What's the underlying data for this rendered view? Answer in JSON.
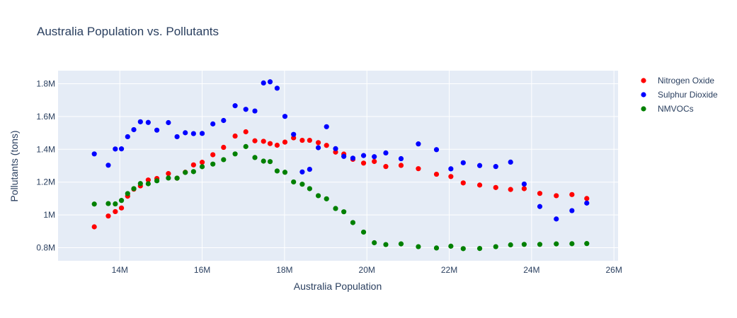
{
  "chart_data": {
    "type": "scatter",
    "title": "Australia Population vs. Pollutants",
    "xlabel": "Australia Population",
    "ylabel": "Pollutants (tons)",
    "xlim": [
      12500000,
      26100000
    ],
    "ylim": [
      720000,
      1880000
    ],
    "x_ticks": [
      {
        "value": 14000000,
        "label": "14M"
      },
      {
        "value": 16000000,
        "label": "16M"
      },
      {
        "value": 18000000,
        "label": "18M"
      },
      {
        "value": 20000000,
        "label": "20M"
      },
      {
        "value": 22000000,
        "label": "22M"
      },
      {
        "value": 24000000,
        "label": "24M"
      },
      {
        "value": 26000000,
        "label": "26M"
      }
    ],
    "y_ticks": [
      {
        "value": 800000,
        "label": "0.8M"
      },
      {
        "value": 1000000,
        "label": "1M"
      },
      {
        "value": 1200000,
        "label": "1.2M"
      },
      {
        "value": 1400000,
        "label": "1.4M"
      },
      {
        "value": 1600000,
        "label": "1.6M"
      },
      {
        "value": 1800000,
        "label": "1.8M"
      }
    ],
    "grid": true,
    "legend_position": "right",
    "x": [
      13380000,
      13720000,
      13890000,
      14040000,
      14190000,
      14340000,
      14500000,
      14690000,
      14900000,
      15180000,
      15390000,
      15590000,
      15790000,
      16000000,
      16260000,
      16520000,
      16800000,
      17060000,
      17280000,
      17490000,
      17650000,
      17820000,
      18010000,
      18220000,
      18430000,
      18610000,
      18820000,
      19020000,
      19240000,
      19440000,
      19660000,
      19920000,
      20180000,
      20460000,
      20830000,
      21250000,
      21690000,
      22040000,
      22340000,
      22740000,
      23130000,
      23490000,
      23820000,
      24200000,
      24600000,
      24980000,
      25340000
    ],
    "series": [
      {
        "name": "Nitrogen Oxide",
        "color": "#ff0000",
        "values": [
          927000,
          993000,
          1020000,
          1042000,
          1114000,
          1157000,
          1177000,
          1213000,
          1222000,
          1252000,
          1224000,
          1260000,
          1305000,
          1321000,
          1367000,
          1412000,
          1481000,
          1507000,
          1452000,
          1449000,
          1435000,
          1425000,
          1444000,
          1470000,
          1455000,
          1455000,
          1441000,
          1424000,
          1383000,
          1371000,
          1339000,
          1316000,
          1326000,
          1295000,
          1302000,
          1282000,
          1248000,
          1234000,
          1195000,
          1182000,
          1167000,
          1155000,
          1160000,
          1131000,
          1117000,
          1124000,
          1100000
        ]
      },
      {
        "name": "Sulphur Dioxide",
        "color": "#0000ff",
        "values": [
          1372000,
          1303000,
          1402000,
          1403000,
          1477000,
          1520000,
          1568000,
          1564000,
          1517000,
          1563000,
          1477000,
          1501000,
          1496000,
          1497000,
          1555000,
          1576000,
          1666000,
          1644000,
          1634000,
          1805000,
          1812000,
          1773000,
          1601000,
          1491000,
          1262000,
          1278000,
          1410000,
          1538000,
          1404000,
          1357000,
          1346000,
          1362000,
          1355000,
          1378000,
          1343000,
          1433000,
          1398000,
          1281000,
          1318000,
          1301000,
          1295000,
          1322000,
          1188000,
          1051000,
          975000,
          1026000,
          1072000
        ]
      },
      {
        "name": "NMVOCs",
        "color": "#008000",
        "values": [
          1066000,
          1069000,
          1067000,
          1088000,
          1130000,
          1160000,
          1191000,
          1190000,
          1208000,
          1225000,
          1224000,
          1259000,
          1264000,
          1294000,
          1310000,
          1337000,
          1372000,
          1417000,
          1350000,
          1328000,
          1325000,
          1268000,
          1260000,
          1201000,
          1187000,
          1160000,
          1117000,
          1098000,
          1039000,
          1019000,
          953000,
          895000,
          830000,
          819000,
          823000,
          806000,
          798000,
          809000,
          794000,
          795000,
          806000,
          817000,
          820000,
          820000,
          823000,
          824000,
          825000
        ]
      }
    ]
  }
}
